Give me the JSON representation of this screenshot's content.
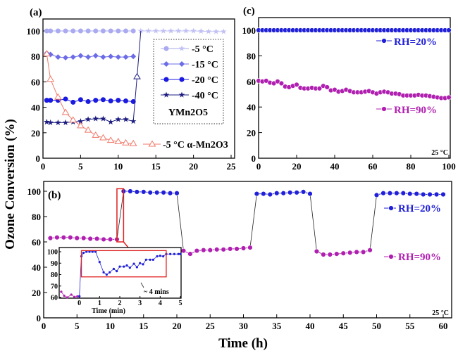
{
  "figure": {
    "ylabel": "Ozone Conversion (%)",
    "xlabel": "Time (h)"
  },
  "chart_data": [
    {
      "id": "a",
      "panel_label": "(a)",
      "type": "line",
      "xlim": [
        0,
        25
      ],
      "ylim": [
        0,
        100
      ],
      "xticks": [
        "0",
        "5",
        "10",
        "15",
        "20",
        "25"
      ],
      "yticks": [
        "0",
        "20",
        "40",
        "60",
        "80",
        "100"
      ],
      "legend_title": "YMn2O5",
      "legend_placement": "top-right",
      "series": [
        {
          "name": "-5 °C",
          "color": "#aaaaf0",
          "marker": "circle",
          "x": [
            0.5,
            1,
            2,
            3,
            4,
            5,
            6,
            7,
            8,
            9,
            10,
            11,
            12
          ],
          "y": [
            100,
            100,
            100,
            100,
            100,
            100,
            100,
            100,
            100,
            100,
            100,
            100,
            100
          ]
        },
        {
          "name": "",
          "color": "#c0c0f4",
          "marker": "star",
          "x": [
            13,
            14,
            15,
            16,
            17,
            18,
            19,
            20,
            21,
            22,
            23,
            24
          ],
          "y": [
            100,
            100,
            100,
            100,
            100,
            100,
            100,
            100,
            99.8,
            99.6,
            99.5,
            99.5
          ]
        },
        {
          "name": "-15 °C",
          "color": "#6c6ce8",
          "marker": "diamond",
          "x": [
            0.5,
            1,
            2,
            3,
            4,
            5,
            6,
            7,
            8,
            9,
            10,
            11,
            12
          ],
          "y": [
            82.5,
            81.5,
            79.5,
            79,
            79.5,
            80.5,
            79.5,
            80.5,
            79.5,
            80,
            79.5,
            79.5,
            80
          ]
        },
        {
          "name": "-20 °C",
          "color": "#1a1ae0",
          "marker": "circle",
          "x": [
            0.5,
            1,
            2,
            3,
            4,
            5,
            6,
            7,
            8,
            9,
            10,
            11,
            12
          ],
          "y": [
            45.5,
            45.5,
            45.5,
            46.5,
            44,
            46,
            44.5,
            45.5,
            46,
            45,
            45.5,
            45,
            44.5
          ]
        },
        {
          "name": "-40 °C",
          "color": "#1c1c80",
          "marker": "star",
          "x": [
            0.5,
            1,
            2,
            3,
            4,
            5,
            6,
            7,
            8,
            9,
            10,
            11,
            12,
            12.5,
            13
          ],
          "y": [
            28.5,
            28,
            28,
            28,
            28.5,
            29,
            30.5,
            31,
            31,
            28.5,
            30.5,
            30.5,
            29,
            64,
            100
          ]
        },
        {
          "name": "-5 °C α-Mn2O3",
          "color": "#f07a6a",
          "marker": "triangle-open",
          "x": [
            0.5,
            1,
            2,
            3,
            4,
            5,
            6,
            7,
            8,
            9,
            10,
            11,
            12
          ],
          "y": [
            82,
            62,
            48,
            36,
            30,
            25.5,
            22,
            18,
            16,
            14,
            13,
            12,
            11.5
          ]
        }
      ]
    },
    {
      "id": "c",
      "panel_label": "(c)",
      "type": "line",
      "xlim": [
        0,
        100
      ],
      "ylim": [
        0,
        100
      ],
      "xticks": [
        "0",
        "20",
        "40",
        "60",
        "80",
        "100"
      ],
      "yticks": [
        "0",
        "20",
        "40",
        "60",
        "80",
        "100"
      ],
      "annotation": "25 °C",
      "series": [
        {
          "name": "RH=20%",
          "color": "#2020d8",
          "marker": "ball",
          "x": [
            0,
            2,
            4,
            6,
            8,
            10,
            12,
            14,
            16,
            18,
            20,
            22,
            24,
            26,
            28,
            30,
            32,
            34,
            36,
            38,
            40,
            42,
            44,
            46,
            48,
            50,
            52,
            54,
            56,
            58,
            60,
            62,
            64,
            66,
            68,
            70,
            72,
            74,
            76,
            78,
            80,
            82,
            84,
            86,
            88,
            90,
            92,
            94,
            96,
            98,
            100
          ],
          "y": [
            100,
            100,
            100,
            100,
            100,
            100,
            100,
            100,
            100,
            100,
            100,
            100,
            100,
            100,
            100,
            100,
            100,
            100,
            100,
            100,
            100,
            100,
            100,
            100,
            100,
            100,
            100,
            100,
            100,
            100,
            100,
            100,
            100,
            100,
            100,
            100,
            100,
            100,
            100,
            100,
            100,
            100,
            100,
            100,
            100,
            100,
            100,
            100,
            100,
            100,
            100
          ]
        },
        {
          "name": "RH=90%",
          "color": "#b020b0",
          "marker": "ball",
          "x": [
            0,
            2,
            4,
            6,
            8,
            10,
            12,
            14,
            16,
            18,
            20,
            22,
            24,
            26,
            28,
            30,
            32,
            34,
            36,
            38,
            40,
            42,
            44,
            46,
            48,
            50,
            52,
            54,
            56,
            58,
            60,
            62,
            64,
            66,
            68,
            70,
            72,
            74,
            76,
            78,
            80,
            82,
            84,
            86,
            88,
            90,
            92,
            94,
            96,
            98,
            100
          ],
          "y": [
            60.5,
            60,
            60.5,
            59,
            58.5,
            60,
            58.5,
            56,
            55.5,
            56.5,
            57.5,
            55,
            54.5,
            54.5,
            55,
            54.5,
            54.5,
            56.5,
            55.5,
            53,
            53.5,
            52,
            52.5,
            53.5,
            52.5,
            51.5,
            51.5,
            51.5,
            52,
            52.5,
            51.5,
            50.5,
            51.5,
            52,
            51.5,
            50.5,
            50.5,
            50,
            49,
            49,
            49,
            49,
            49.5,
            49,
            49,
            48.5,
            48,
            47.5,
            47,
            47,
            47.5
          ]
        }
      ]
    },
    {
      "id": "b",
      "panel_label": "(b)",
      "type": "line",
      "xlim": [
        0,
        60
      ],
      "ylim": [
        0,
        100
      ],
      "xticks": [
        "0",
        "5",
        "10",
        "15",
        "20",
        "25",
        "30",
        "35",
        "40",
        "45",
        "50",
        "55",
        "60"
      ],
      "yticks": [
        "0",
        "20",
        "40",
        "60",
        "80",
        "100"
      ],
      "annotation": "25 °C",
      "legend": [
        "RH=20%",
        "RH=90%"
      ],
      "series": [
        {
          "name": "RH=90%",
          "color": "#b020b0",
          "marker": "ball",
          "x": [
            1,
            2,
            3,
            4,
            5,
            6,
            7,
            8,
            9,
            10,
            11
          ],
          "y": [
            63,
            63.5,
            63.5,
            63.5,
            63,
            63,
            62.5,
            62.5,
            62,
            62,
            62
          ]
        },
        {
          "name": "RH=20%",
          "color": "#2020d8",
          "marker": "ball",
          "x": [
            12,
            13,
            14,
            15,
            16,
            17,
            18,
            19,
            20
          ],
          "y": [
            100,
            100,
            99.5,
            99.5,
            99,
            99,
            99,
            98.5,
            98.5
          ]
        },
        {
          "name": "RH=90%",
          "color": "#b020b0",
          "marker": "ball",
          "x": [
            21,
            22,
            23,
            24,
            25,
            26,
            27,
            28,
            29,
            30,
            31
          ],
          "y": [
            53,
            50.5,
            53,
            53.5,
            53.5,
            54,
            54,
            54.5,
            54.5,
            55,
            55.5
          ]
        },
        {
          "name": "RH=20%",
          "color": "#2020d8",
          "marker": "ball",
          "x": [
            32,
            33,
            34,
            35,
            36,
            37,
            38,
            39,
            40
          ],
          "y": [
            98,
            98,
            97.5,
            98.5,
            98.5,
            99,
            99,
            99.5,
            98
          ]
        },
        {
          "name": "RH=90%",
          "color": "#b020b0",
          "marker": "ball",
          "x": [
            41,
            42,
            43,
            44,
            45,
            46,
            47,
            48,
            49
          ],
          "y": [
            52.5,
            50,
            50,
            50.5,
            51,
            51.5,
            52,
            52,
            53.5
          ]
        },
        {
          "name": "RH=20%",
          "color": "#2020d8",
          "marker": "ball",
          "x": [
            50,
            51,
            52,
            53,
            54,
            55,
            56,
            57,
            58,
            59,
            60
          ],
          "y": [
            97,
            98.5,
            98.5,
            98.5,
            98.5,
            98,
            98,
            97.5,
            97.5,
            97.5,
            97.5
          ]
        }
      ]
    },
    {
      "id": "inset",
      "type": "line",
      "xlabel": "Time (min)",
      "xlim": [
        -1,
        5
      ],
      "ylim": [
        60,
        100
      ],
      "xticks": [
        "0",
        "1",
        "2",
        "3",
        "4",
        "5"
      ],
      "yticks": [
        "60",
        "70",
        "80",
        "90",
        "100"
      ],
      "annotation": "~ 4 mins",
      "series": [
        {
          "color": "#b020b0",
          "marker": "dot",
          "x": [
            -0.9,
            -0.75,
            -0.6,
            -0.4,
            -0.25,
            -0.1,
            0
          ],
          "y": [
            65,
            61.5,
            60,
            62.5,
            60.5,
            61,
            61
          ]
        },
        {
          "color": "#2020d8",
          "marker": "dot",
          "x": [
            0,
            0.1,
            0.2,
            0.35,
            0.5,
            0.65,
            0.8,
            1.0,
            1.2,
            1.35,
            1.5,
            1.7,
            1.85,
            2.0,
            2.2,
            2.35,
            2.5,
            2.7,
            2.85,
            3.0,
            3.15,
            3.3,
            3.5,
            3.65,
            3.85,
            4.0,
            4.15,
            4.3,
            4.5,
            4.7,
            4.9,
            5.0
          ],
          "y": [
            61,
            96,
            99,
            100,
            100,
            100,
            100,
            91,
            82,
            80,
            82,
            85,
            83,
            87,
            87,
            88,
            86,
            89.5,
            86.5,
            90,
            89,
            93,
            93,
            93,
            96,
            96.5,
            96,
            98,
            98,
            98,
            98,
            98
          ]
        }
      ]
    }
  ]
}
